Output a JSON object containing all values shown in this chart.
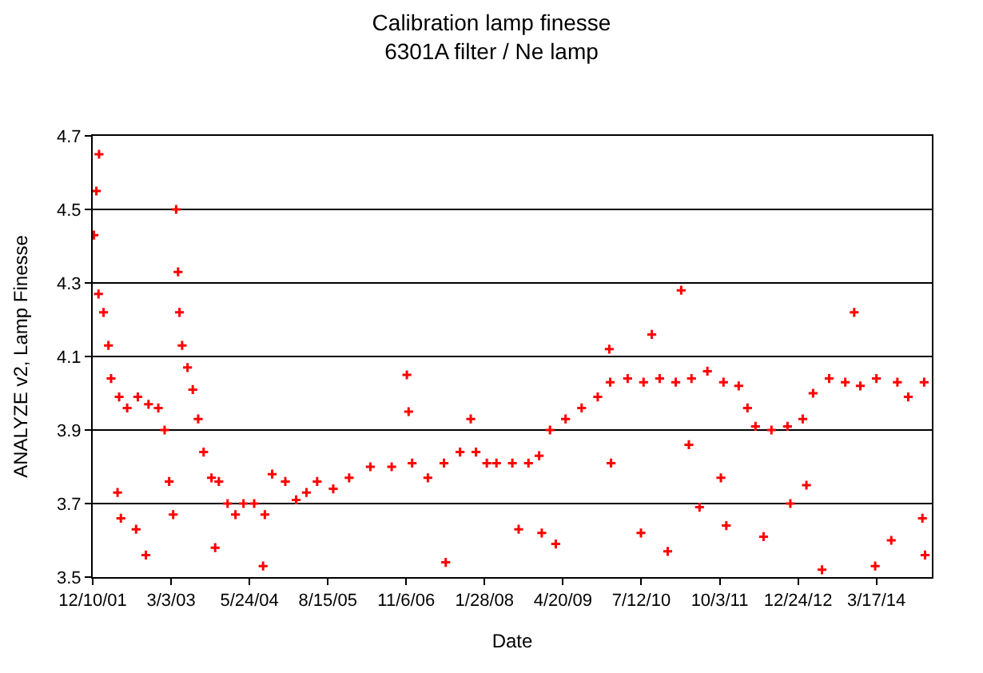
{
  "chart_data": {
    "type": "scatter",
    "title": "Calibration lamp finesse",
    "subtitle": "6301A filter / Ne lamp",
    "xlabel": "Date",
    "ylabel": "ANALYZE v2, Lamp Finesse",
    "marker": "cross",
    "grid": "y",
    "xlim": [
      "2001-12-10",
      "2015-01-28"
    ],
    "xticks": [
      {
        "value": "2001-12-10",
        "label": "12/10/01"
      },
      {
        "value": "2003-03-03",
        "label": "3/3/03"
      },
      {
        "value": "2004-05-24",
        "label": "5/24/04"
      },
      {
        "value": "2005-08-15",
        "label": "8/15/05"
      },
      {
        "value": "2006-11-06",
        "label": "11/6/06"
      },
      {
        "value": "2008-01-28",
        "label": "1/28/08"
      },
      {
        "value": "2009-04-20",
        "label": "4/20/09"
      },
      {
        "value": "2010-07-12",
        "label": "7/12/10"
      },
      {
        "value": "2011-10-03",
        "label": "10/3/11"
      },
      {
        "value": "2012-12-24",
        "label": "12/24/12"
      },
      {
        "value": "2014-03-17",
        "label": "3/17/14"
      }
    ],
    "ylim": [
      3.5,
      4.7
    ],
    "yticks": [
      3.5,
      3.7,
      3.9,
      4.1,
      4.3,
      4.5,
      4.7
    ],
    "series": [
      {
        "color": "#ff0000",
        "x": [
          "2001-12-17",
          "2001-12-31",
          "2002-01-15",
          "2002-01-12",
          "2002-02-10",
          "2002-03-10",
          "2002-03-25",
          "2002-05-10",
          "2002-06-25",
          "2002-08-25",
          "2002-10-25",
          "2002-12-20",
          "2003-01-25",
          "2003-02-20",
          "2003-03-15",
          "2003-04-01",
          "2003-04-12",
          "2003-04-20",
          "2003-05-05",
          "2003-06-05",
          "2003-07-05",
          "2003-08-05",
          "2003-09-05",
          "2003-10-20",
          "2003-12-01",
          "2004-01-20",
          "2004-03-05",
          "2004-04-20",
          "2004-06-20",
          "2004-08-20",
          "2004-10-01",
          "2004-12-15",
          "2005-02-15",
          "2005-04-15",
          "2005-06-15",
          "2005-09-15",
          "2005-12-15",
          "2006-04-15",
          "2006-08-15",
          "2006-12-10",
          "2007-03-10",
          "2007-06-10",
          "2007-09-10",
          "2007-12-10",
          "2008-02-10",
          "2008-04-05",
          "2008-07-05",
          "2008-10-05",
          "2008-12-05",
          "2009-02-05",
          "2009-05-05",
          "2009-08-05",
          "2009-11-05",
          "2010-01-15",
          "2010-04-25",
          "2010-07-25",
          "2010-10-25",
          "2011-01-25",
          "2011-04-25",
          "2011-07-25",
          "2011-10-25",
          "2012-01-20",
          "2012-03-10",
          "2012-04-25",
          "2012-07-25",
          "2012-10-25",
          "2013-01-20",
          "2013-03-20",
          "2013-06-20",
          "2013-09-20",
          "2013-12-15",
          "2014-03-17",
          "2014-07-15",
          "2014-09-15",
          "2014-12-15",
          "2002-05-01",
          "2002-08-15",
          "2002-10-10",
          "2002-05-20",
          "2006-11-10",
          "2006-11-20",
          "2004-08-10",
          "2003-11-10",
          "2007-11-10",
          "2007-06-20",
          "2011-02-25",
          "2010-09-10",
          "2010-01-10",
          "2013-11-10",
          "2010-01-20",
          "2011-04-10",
          "2011-06-10",
          "2011-11-10",
          "2012-06-10",
          "2011-10-10",
          "2014-03-10",
          "2014-06-10",
          "2014-12-05",
          "2014-12-20",
          "2013-05-10",
          "2009-03-10",
          "2010-07-10",
          "2010-12-10",
          "2012-11-10",
          "2013-02-10",
          "2008-12-20",
          "2008-08-10"
        ],
        "values": [
          4.43,
          4.55,
          4.65,
          4.27,
          4.22,
          4.13,
          4.04,
          3.99,
          3.96,
          3.99,
          3.97,
          3.96,
          3.9,
          3.76,
          3.67,
          4.5,
          4.33,
          4.22,
          4.13,
          4.07,
          4.01,
          3.93,
          3.84,
          3.77,
          3.76,
          3.7,
          3.67,
          3.7,
          3.7,
          3.67,
          3.78,
          3.76,
          3.71,
          3.73,
          3.76,
          3.74,
          3.77,
          3.8,
          3.8,
          3.81,
          3.77,
          3.81,
          3.84,
          3.84,
          3.81,
          3.81,
          3.81,
          3.81,
          3.83,
          3.9,
          3.93,
          3.96,
          3.99,
          4.03,
          4.04,
          4.03,
          4.04,
          4.03,
          4.04,
          4.06,
          4.03,
          4.02,
          3.96,
          3.91,
          3.9,
          3.91,
          3.93,
          4.0,
          4.04,
          4.03,
          4.02,
          4.04,
          4.03,
          3.99,
          4.03,
          3.73,
          3.63,
          3.56,
          3.66,
          4.05,
          3.95,
          3.53,
          3.58,
          3.93,
          3.54,
          4.28,
          4.16,
          4.12,
          4.22,
          3.81,
          3.86,
          3.69,
          3.64,
          3.61,
          3.77,
          3.53,
          3.6,
          3.66,
          3.56,
          3.52,
          3.59,
          3.62,
          3.57,
          3.7,
          3.75,
          3.62,
          3.63
        ]
      }
    ]
  }
}
